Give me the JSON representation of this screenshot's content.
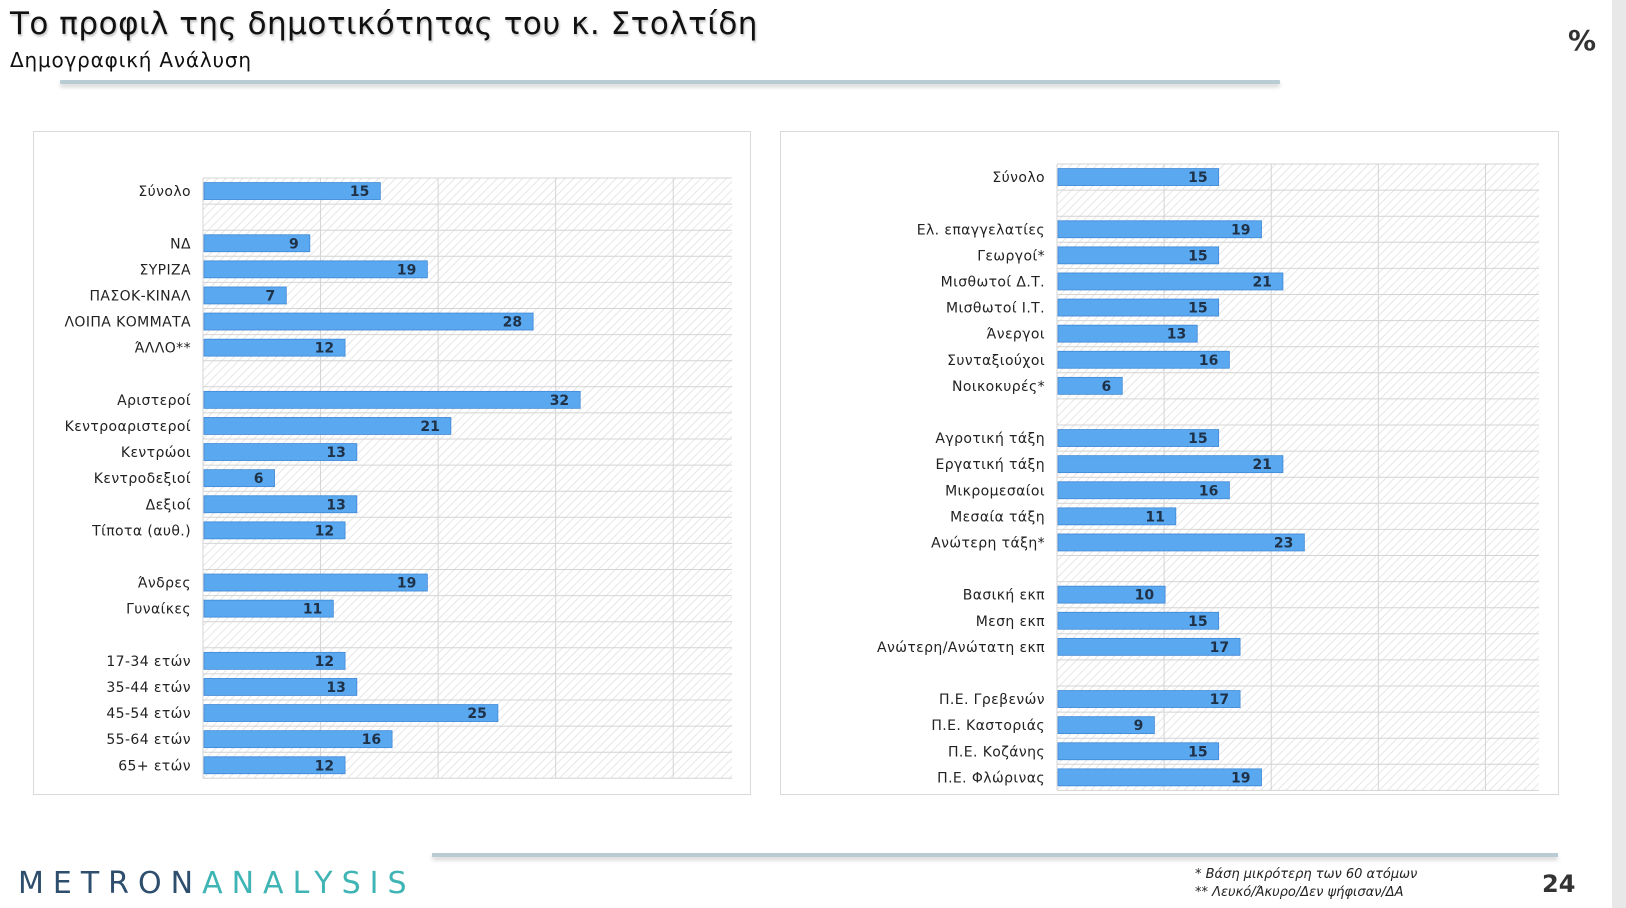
{
  "header": {
    "title": "Το προφιλ της δημοτικότητας του κ. Στολτίδη",
    "subtitle": "Δημογραφική Ανάλυση",
    "unit_symbol": "%"
  },
  "footer": {
    "logo_part1": "METRON",
    "logo_part2": "ANALYSIS",
    "note1": "*  Βάση μικρότερη των 60 ατόμων",
    "note2": "** Λευκό/Άκυρο/Δεν ψήφισαν/ΔΑ",
    "page_number": "24"
  },
  "colors": {
    "bar_fill": "#5aa8f0",
    "bar_edge": "#3f88d6",
    "grid_line": "#d4d4d4",
    "hatch": "#e6e6e6",
    "logo_dark": "#2e4e6d",
    "logo_teal": "#3fb4b4",
    "rule": "#b9ccd3"
  },
  "chart_data": [
    {
      "type": "bar",
      "orientation": "horizontal",
      "xlim": [
        0,
        45
      ],
      "grid": true,
      "categories": [
        "Σύνολο",
        "",
        "ΝΔ",
        "ΣΥΡΙΖΑ",
        "ΠΑΣΟΚ-ΚΙΝΑΛ",
        "ΛΟΙΠΑ ΚΟΜΜΑΤΑ",
        "ΆΛΛΟ**",
        "",
        "Αριστεροί",
        "Κεντροαριστεροί",
        "Κεντρώοι",
        "Κεντροδεξιοί",
        "Δεξιοί",
        "Τίποτα (αυθ.)",
        "",
        "Άνδρες",
        "Γυναίκες",
        "",
        "17-34 ετών",
        "35-44 ετών",
        "45-54 ετών",
        "55-64 ετών",
        "65+ ετών"
      ],
      "values": [
        15,
        null,
        9,
        19,
        7,
        28,
        12,
        null,
        32,
        21,
        13,
        6,
        13,
        12,
        null,
        19,
        11,
        null,
        12,
        13,
        25,
        16,
        12
      ]
    },
    {
      "type": "bar",
      "orientation": "horizontal",
      "xlim": [
        0,
        45
      ],
      "grid": true,
      "categories": [
        "Σύνολο",
        "",
        "Ελ. επαγγελατίες",
        "Γεωργοί*",
        "Μισθωτοί Δ.Τ.",
        "Μισθωτοί Ι.Τ.",
        "Άνεργοι",
        "Συνταξιούχοι",
        "Νοικοκυρές*",
        "",
        "Αγροτική τάξη",
        "Εργατική τάξη",
        "Μικρομεσαίοι",
        "Μεσαία τάξη",
        "Ανώτερη τάξη*",
        "",
        "Βασική εκπ",
        "Μεση εκπ",
        "Ανώτερη/Ανώτατη εκπ",
        "",
        "Π.Ε. Γρεβενών",
        "Π.Ε. Καστοριάς",
        "Π.Ε. Κοζάνης",
        "Π.Ε. Φλώρινας"
      ],
      "values": [
        15,
        null,
        19,
        15,
        21,
        15,
        13,
        16,
        6,
        null,
        15,
        21,
        16,
        11,
        23,
        null,
        10,
        15,
        17,
        null,
        17,
        9,
        15,
        19
      ]
    }
  ]
}
